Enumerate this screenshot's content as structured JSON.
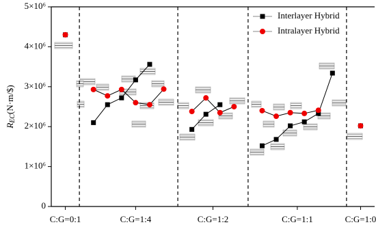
{
  "chart_data": {
    "type": "line",
    "ylabel_parts": [
      "R",
      "EC",
      "(N·m/$)"
    ],
    "x": [
      1,
      2,
      3,
      4,
      5,
      6,
      7,
      8,
      9,
      10,
      11,
      12,
      13,
      14,
      15,
      16,
      17,
      18,
      19,
      20,
      21,
      22
    ],
    "xlim": [
      0,
      23
    ],
    "xticks": [
      {
        "value": 1,
        "label": "C:G=0:1"
      },
      {
        "value": 6,
        "label": "C:G=1:4"
      },
      {
        "value": 11.5,
        "label": "C:G=1:2"
      },
      {
        "value": 17.5,
        "label": "C:G=1:1"
      },
      {
        "value": 22,
        "label": "C:G=1:0"
      }
    ],
    "dividers": [
      2,
      9,
      14,
      21
    ],
    "ylim": [
      0,
      5000000
    ],
    "yticks": [
      0,
      {
        "value": 1000000,
        "label": "1×10⁶"
      },
      {
        "value": 2000000,
        "label": "2×10⁶"
      },
      {
        "value": 3000000,
        "label": "3×10⁶"
      },
      {
        "value": 4000000,
        "label": "4×10⁶"
      },
      {
        "value": 5000000,
        "label": "5×10⁶"
      }
    ],
    "line_color": "#000000",
    "legend": "upper right",
    "series": [
      {
        "name": "Interlayer Hybrid",
        "color": "#000000",
        "marker": "square",
        "values": [
          4300000,
          null,
          2100000,
          2550000,
          2720000,
          3170000,
          3560000,
          null,
          null,
          1930000,
          2310000,
          2550000,
          null,
          null,
          1520000,
          1680000,
          2020000,
          2120000,
          2330000,
          3340000,
          null,
          2020000
        ]
      },
      {
        "name": "Intralayer Hybrid",
        "color": "#ee0000",
        "marker": "circle",
        "values": [
          4300000,
          null,
          2930000,
          2770000,
          2930000,
          2600000,
          2550000,
          2940000,
          null,
          2380000,
          2720000,
          2350000,
          2500000,
          null,
          2400000,
          2260000,
          2350000,
          2330000,
          2410000,
          null,
          null,
          2020000
        ]
      }
    ]
  }
}
